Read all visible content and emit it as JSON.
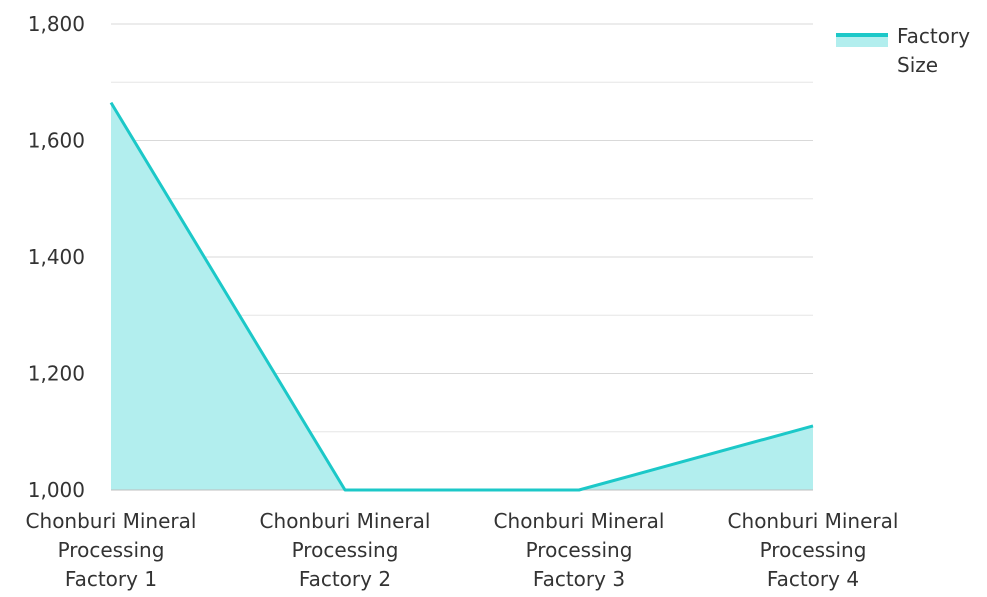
{
  "chart_data": {
    "type": "area",
    "categories": [
      [
        "Chonburi Mineral",
        "Processing",
        "Factory 1"
      ],
      [
        "Chonburi Mineral",
        "Processing",
        "Factory 2"
      ],
      [
        "Chonburi Mineral",
        "Processing",
        "Factory 3"
      ],
      [
        "Chonburi Mineral",
        "Processing",
        "Factory 4"
      ]
    ],
    "series": [
      {
        "name": "Factory Size",
        "values": [
          1665,
          1000,
          1000,
          1110
        ]
      }
    ],
    "legend": {
      "lines": [
        "Factory",
        "Size"
      ],
      "position": "top-right"
    },
    "ylim": [
      1000,
      1800
    ],
    "yticks": [
      {
        "value": 1000,
        "label": "1,000"
      },
      {
        "value": 1200,
        "label": "1,200"
      },
      {
        "value": 1400,
        "label": "1,400"
      },
      {
        "value": 1600,
        "label": "1,600"
      },
      {
        "value": 1800,
        "label": "1,800"
      }
    ],
    "minor_grid": [
      1100,
      1300,
      1500,
      1700
    ],
    "grid": true,
    "colors": {
      "line": "#1cc8c8",
      "fill": "#b2eeee",
      "grid": "#d9d9d9",
      "axis": "#bfbfbf"
    }
  }
}
